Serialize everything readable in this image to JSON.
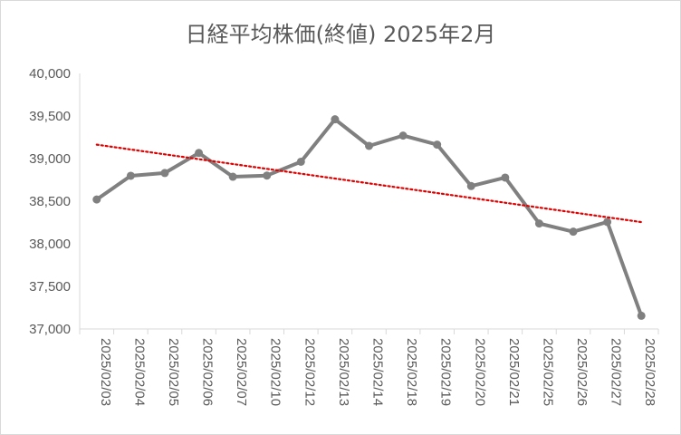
{
  "chart_data": {
    "type": "line",
    "title": "日経平均株価(終値) 2025年2月",
    "xlabel": "",
    "ylabel": "",
    "ylim": [
      37000,
      40000
    ],
    "yticks": [
      37000,
      37500,
      38000,
      38500,
      39000,
      39500,
      40000
    ],
    "ytick_labels": [
      "37,000",
      "37,500",
      "38,000",
      "38,500",
      "39,000",
      "39,500",
      "40,000"
    ],
    "categories": [
      "2025/02/03",
      "2025/02/04",
      "2025/02/05",
      "2025/02/06",
      "2025/02/07",
      "2025/02/10",
      "2025/02/12",
      "2025/02/13",
      "2025/02/14",
      "2025/02/18",
      "2025/02/19",
      "2025/02/20",
      "2025/02/21",
      "2025/02/25",
      "2025/02/26",
      "2025/02/27",
      "2025/02/28"
    ],
    "series": [
      {
        "values": [
          38520,
          38798,
          38831,
          39066,
          38787,
          38801,
          38963,
          39461,
          39149,
          39270,
          39164,
          38678,
          38777,
          38238,
          38142,
          38256,
          37155
        ],
        "color": "#808080"
      }
    ],
    "trendline": {
      "type": "linear",
      "color": "#e00000",
      "style": "dotted"
    },
    "grid": false,
    "legend": "none"
  }
}
